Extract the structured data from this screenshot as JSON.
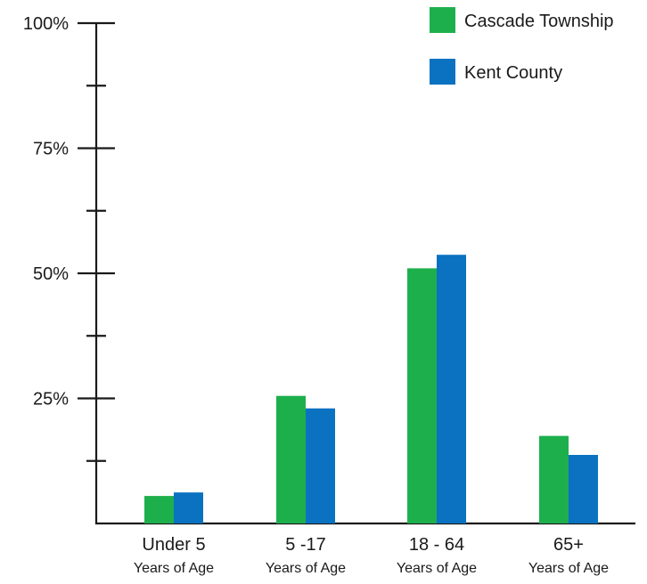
{
  "chart_data": {
    "type": "bar",
    "categories": [
      {
        "label": "Under 5",
        "sublabel": "Years of Age"
      },
      {
        "label": "5 -17",
        "sublabel": "Years of Age"
      },
      {
        "label": "18 - 64",
        "sublabel": "Years of Age"
      },
      {
        "label": "65+",
        "sublabel": "Years of Age"
      }
    ],
    "series": [
      {
        "name": "Cascade Township",
        "color": "#1eaf4d",
        "values": [
          5.5,
          25.5,
          51,
          17.5
        ]
      },
      {
        "name": "Kent County",
        "color": "#0a72c1",
        "values": [
          6.2,
          23,
          53.7,
          13.7
        ]
      }
    ],
    "ylim": [
      0,
      100
    ],
    "y_ticks": [
      {
        "value": 100,
        "label": "100%"
      },
      {
        "value": 75,
        "label": "75%"
      },
      {
        "value": 50,
        "label": "50%"
      },
      {
        "value": 25,
        "label": "25%"
      }
    ],
    "y_minor_ticks": [
      12.5,
      37.5,
      62.5,
      87.5
    ],
    "legend_position": "top-right",
    "grid": false
  }
}
